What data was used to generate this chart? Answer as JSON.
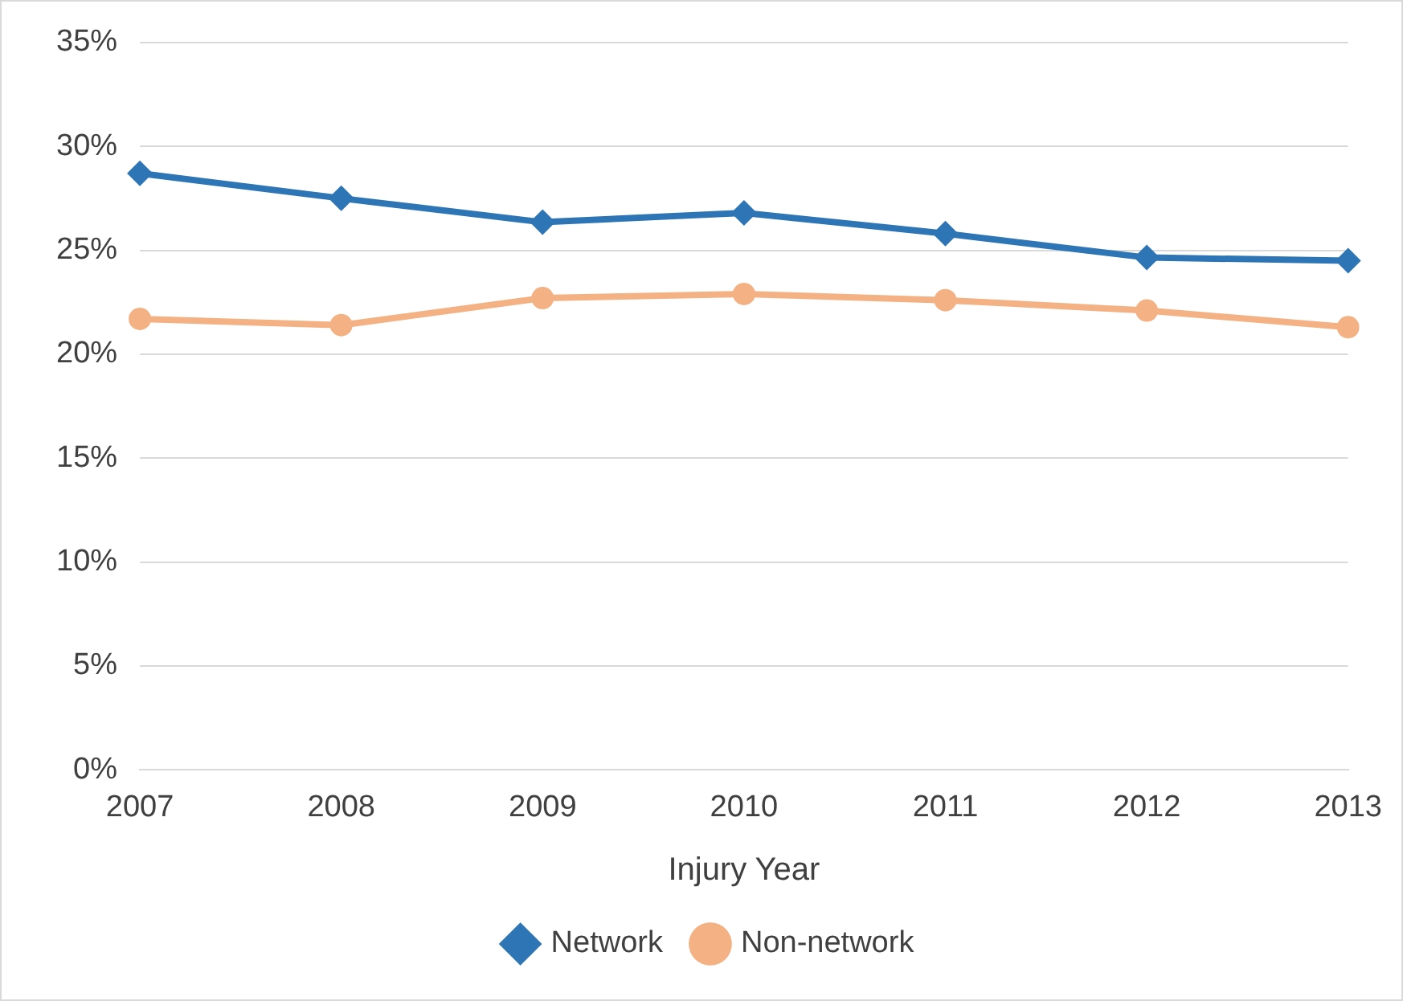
{
  "chart_data": {
    "type": "line",
    "xlabel": "Injury Year",
    "categories": [
      "2007",
      "2008",
      "2009",
      "2010",
      "2011",
      "2012",
      "2013"
    ],
    "series": [
      {
        "name": "Network",
        "color": "#2e75b6",
        "marker": "diamond",
        "values": [
          28.7,
          27.5,
          26.35,
          26.8,
          25.8,
          24.65,
          24.5
        ]
      },
      {
        "name": "Non-network",
        "color": "#f4b183",
        "marker": "circle",
        "values": [
          21.7,
          21.4,
          22.7,
          22.9,
          22.6,
          22.1,
          21.3
        ]
      }
    ],
    "ylim": [
      0,
      35
    ],
    "yticks": [
      {
        "value": 0,
        "label": "0%"
      },
      {
        "value": 5,
        "label": "5%"
      },
      {
        "value": 10,
        "label": "10%"
      },
      {
        "value": 15,
        "label": "15%"
      },
      {
        "value": 20,
        "label": "20%"
      },
      {
        "value": 25,
        "label": "25%"
      },
      {
        "value": 30,
        "label": "30%"
      },
      {
        "value": 35,
        "label": "35%"
      }
    ],
    "grid": "y",
    "legend": "bottom",
    "line_style": "solid"
  }
}
